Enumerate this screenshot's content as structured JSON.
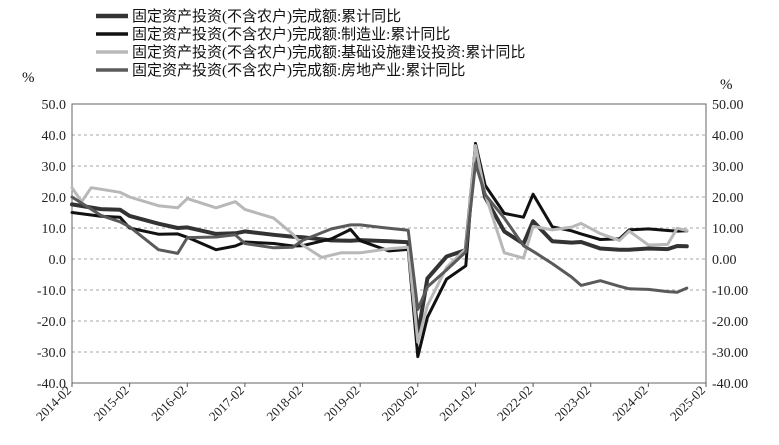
{
  "chart_data": {
    "type": "line",
    "title": "",
    "ylabel_left": "%",
    "ylabel_right": "%",
    "ylim": [
      -40,
      50
    ],
    "yticks": [
      -40,
      -30,
      -20,
      -10,
      0,
      10,
      20,
      30,
      40,
      50
    ],
    "ytick_labels_left": [
      "-40.0",
      "-30.0",
      "-20.0",
      "-10.0",
      "0.0",
      "10.0",
      "20.0",
      "30.0",
      "40.0",
      "50.0"
    ],
    "ytick_labels_right": [
      "-40.00",
      "-30.00",
      "-20.00",
      "-10.00",
      "0.00",
      "10.00",
      "20.00",
      "30.00",
      "40.00",
      "50.00"
    ],
    "xticks": [
      "2014-02",
      "2015-02",
      "2016-02",
      "2017-02",
      "2018-02",
      "2019-02",
      "2020-02",
      "2021-02",
      "2022-02",
      "2023-02",
      "2024-02",
      "2025-02"
    ],
    "grid": "horizontal-dashed",
    "legend_position": "top",
    "series": [
      {
        "name": "固定资产投资(不含农户)完成额:累计同比",
        "color": "#333333",
        "points": [
          [
            0,
            17.6
          ],
          [
            6,
            16.1
          ],
          [
            10,
            15.9
          ],
          [
            12,
            13.9
          ],
          [
            18,
            11.4
          ],
          [
            22,
            10.0
          ],
          [
            24,
            10.2
          ],
          [
            30,
            8.1
          ],
          [
            34,
            8.3
          ],
          [
            36,
            8.9
          ],
          [
            42,
            7.8
          ],
          [
            46,
            7.2
          ],
          [
            48,
            7.0
          ],
          [
            54,
            6.0
          ],
          [
            58,
            5.9
          ],
          [
            60,
            6.1
          ],
          [
            66,
            5.7
          ],
          [
            70,
            5.4
          ],
          [
            72,
            -24.5
          ],
          [
            74,
            -6.3
          ],
          [
            78,
            0.8
          ],
          [
            82,
            2.9
          ],
          [
            84,
            35.0
          ],
          [
            86,
            19.9
          ],
          [
            90,
            8.9
          ],
          [
            94,
            4.9
          ],
          [
            96,
            12.2
          ],
          [
            100,
            5.7
          ],
          [
            104,
            5.3
          ],
          [
            106,
            5.5
          ],
          [
            110,
            3.4
          ],
          [
            114,
            3.0
          ],
          [
            116,
            3.0
          ],
          [
            120,
            3.4
          ],
          [
            124,
            3.2
          ],
          [
            126,
            4.2
          ],
          [
            128,
            4.1
          ]
        ]
      },
      {
        "name": "固定资产投资(不含农户)完成额:制造业:累计同比",
        "color": "#111111",
        "points": [
          [
            0,
            15.0
          ],
          [
            6,
            13.8
          ],
          [
            10,
            13.5
          ],
          [
            12,
            10.0
          ],
          [
            18,
            8.0
          ],
          [
            22,
            8.1
          ],
          [
            24,
            7.0
          ],
          [
            30,
            3.0
          ],
          [
            34,
            4.2
          ],
          [
            36,
            5.5
          ],
          [
            42,
            5.0
          ],
          [
            46,
            4.2
          ],
          [
            48,
            4.3
          ],
          [
            54,
            6.5
          ],
          [
            58,
            9.5
          ],
          [
            60,
            5.9
          ],
          [
            66,
            2.6
          ],
          [
            70,
            3.1
          ],
          [
            72,
            -31.5
          ],
          [
            74,
            -18.8
          ],
          [
            78,
            -6.5
          ],
          [
            82,
            -2.2
          ],
          [
            84,
            37.3
          ],
          [
            86,
            23.8
          ],
          [
            90,
            14.7
          ],
          [
            94,
            13.5
          ],
          [
            96,
            20.9
          ],
          [
            100,
            10.4
          ],
          [
            104,
            9.1
          ],
          [
            106,
            8.1
          ],
          [
            110,
            6.3
          ],
          [
            114,
            6.5
          ],
          [
            116,
            9.4
          ],
          [
            120,
            9.7
          ],
          [
            124,
            9.2
          ],
          [
            126,
            9.0
          ],
          [
            128,
            9.1
          ]
        ]
      },
      {
        "name": "固定资产投资(不含农户)完成额:基础设施建设投资:累计同比",
        "color": "#b8b8b8",
        "points": [
          [
            0,
            23.0
          ],
          [
            2,
            18.5
          ],
          [
            4,
            23.0
          ],
          [
            10,
            21.5
          ],
          [
            12,
            20.0
          ],
          [
            18,
            17.2
          ],
          [
            22,
            16.5
          ],
          [
            24,
            19.5
          ],
          [
            30,
            16.5
          ],
          [
            34,
            18.5
          ],
          [
            36,
            16.0
          ],
          [
            42,
            13.2
          ],
          [
            46,
            8.0
          ],
          [
            48,
            4.5
          ],
          [
            52,
            0.5
          ],
          [
            56,
            2.0
          ],
          [
            60,
            2.0
          ],
          [
            66,
            3.3
          ],
          [
            70,
            3.8
          ],
          [
            72,
            -26.8
          ],
          [
            74,
            -15.0
          ],
          [
            78,
            -2.7
          ],
          [
            82,
            3.3
          ],
          [
            84,
            36.6
          ],
          [
            86,
            21.0
          ],
          [
            90,
            2.0
          ],
          [
            94,
            0.3
          ],
          [
            96,
            10.5
          ],
          [
            100,
            9.4
          ],
          [
            104,
            10.3
          ],
          [
            106,
            11.5
          ],
          [
            110,
            8.2
          ],
          [
            114,
            6.0
          ],
          [
            116,
            9.0
          ],
          [
            120,
            4.5
          ],
          [
            124,
            4.7
          ],
          [
            126,
            9.9
          ],
          [
            128,
            9.2
          ]
        ]
      },
      {
        "name": "固定资产投资(不含农户)完成额:房地产业:累计同比",
        "color": "#5a5a5a",
        "points": [
          [
            0,
            20.0
          ],
          [
            6,
            14.1
          ],
          [
            10,
            12.0
          ],
          [
            12,
            10.4
          ],
          [
            18,
            3.0
          ],
          [
            22,
            1.8
          ],
          [
            24,
            6.9
          ],
          [
            30,
            7.1
          ],
          [
            34,
            7.8
          ],
          [
            36,
            5.0
          ],
          [
            42,
            3.6
          ],
          [
            46,
            3.8
          ],
          [
            48,
            6.0
          ],
          [
            54,
            9.7
          ],
          [
            58,
            11.0
          ],
          [
            60,
            11.0
          ],
          [
            66,
            9.9
          ],
          [
            70,
            9.3
          ],
          [
            72,
            -16.3
          ],
          [
            74,
            -9.0
          ],
          [
            78,
            -3.5
          ],
          [
            82,
            2.3
          ],
          [
            84,
            30.8
          ],
          [
            86,
            20.8
          ],
          [
            90,
            13.2
          ],
          [
            94,
            4.3
          ],
          [
            96,
            2.5
          ],
          [
            100,
            -1.5
          ],
          [
            104,
            -5.8
          ],
          [
            106,
            -8.5
          ],
          [
            110,
            -7.0
          ],
          [
            114,
            -8.8
          ],
          [
            116,
            -9.6
          ],
          [
            120,
            -9.8
          ],
          [
            124,
            -10.5
          ],
          [
            126,
            -10.7
          ],
          [
            128,
            -9.4
          ]
        ]
      }
    ]
  }
}
